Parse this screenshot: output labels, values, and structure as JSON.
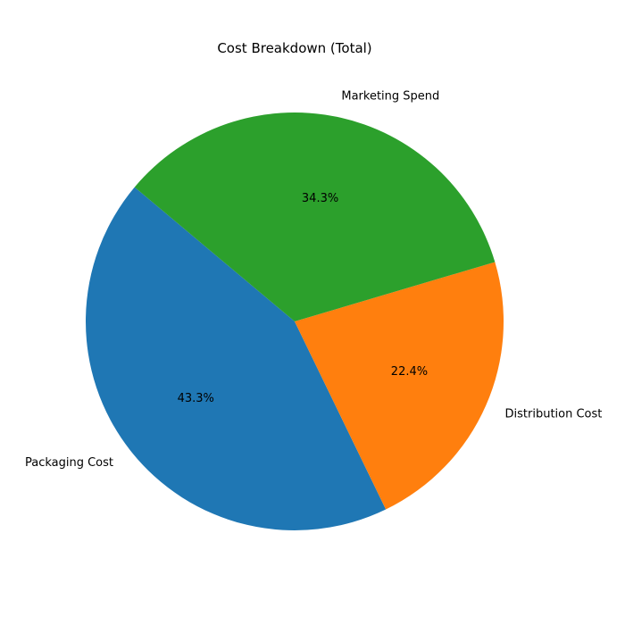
{
  "chart_data": {
    "type": "pie",
    "title": "Cost Breakdown (Total)",
    "labels": [
      "Packaging Cost",
      "Distribution Cost",
      "Marketing Spend"
    ],
    "values": [
      43.3,
      22.4,
      34.3
    ],
    "percent_labels": [
      "43.3%",
      "22.4%",
      "34.3%"
    ],
    "colors": [
      "#1f77b4",
      "#ff7f0e",
      "#2ca02c"
    ],
    "start_angle_deg": 140,
    "direction": "counterclockwise"
  }
}
